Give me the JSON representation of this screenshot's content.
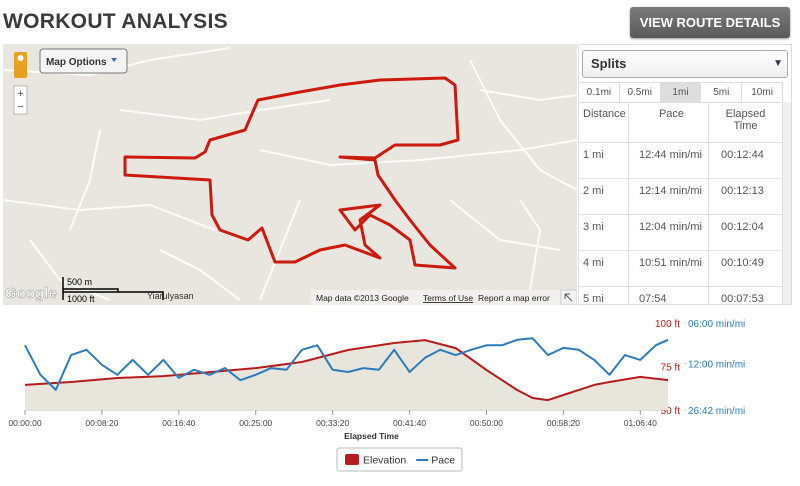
{
  "header": {
    "title": "WORKOUT ANALYSIS",
    "button": "VIEW ROUTE DETAILS"
  },
  "map": {
    "map_options": "Map Options",
    "zoom_in": "+",
    "zoom_out": "−",
    "scale_metric": "500 m",
    "scale_imperial": "1000 ft",
    "place_label": "Yiarulyasan",
    "logo": "Google",
    "attribution": "Map data ©2013 Google",
    "terms": "Terms of Use",
    "report": "Report a map error"
  },
  "splits": {
    "selector": "Splits",
    "intervals": [
      "0.1mi",
      "0.5mi",
      "1mi",
      "5mi",
      "10mi"
    ],
    "selected_index": 2,
    "columns": [
      "Distance",
      "Pace",
      "Elapsed Time"
    ],
    "rows": [
      [
        "1 mi",
        "12:44 min/mi",
        "00:12:44"
      ],
      [
        "2 mi",
        "12:14 min/mi",
        "00:12:13"
      ],
      [
        "3 mi",
        "12:04 min/mi",
        "00:12:04"
      ],
      [
        "4 mi",
        "10:51 min/mi",
        "00:10:49"
      ],
      [
        "5 mi",
        "07:54",
        "00:07:53"
      ]
    ]
  },
  "chart_data": {
    "type": "line",
    "x_label": "Elapsed Time",
    "xlim": [
      0,
      4180
    ],
    "xticks": [
      {
        "value": 0,
        "label": "00:00:00"
      },
      {
        "value": 500,
        "label": "00:08:20"
      },
      {
        "value": 1000,
        "label": "00:16:40"
      },
      {
        "value": 1500,
        "label": "00:25:00"
      },
      {
        "value": 2000,
        "label": "00:33:20"
      },
      {
        "value": 2500,
        "label": "00:41:40"
      },
      {
        "value": 3000,
        "label": "00:50:00"
      },
      {
        "value": 3500,
        "label": "00:58:20"
      },
      {
        "value": 4000,
        "label": "01:06:40"
      }
    ],
    "ylim": [
      50,
      100
    ],
    "yticks": [
      {
        "value": 50,
        "label": "50 ft"
      },
      {
        "value": 75,
        "label": "75 ft"
      },
      {
        "value": 100,
        "label": "100 ft"
      }
    ],
    "y2lim": [
      6,
      26.7
    ],
    "y2_log": true,
    "y2_reversed": true,
    "y2ticks": [
      {
        "value": 6,
        "label": "06:00 min/mi"
      },
      {
        "value": 12,
        "label": "12:00 min/mi"
      },
      {
        "value": 26.7,
        "label": "26:42 min/mi"
      }
    ],
    "legend": "bottom",
    "series": [
      {
        "name": "Elevation",
        "color": "#b71c1c",
        "style": "area",
        "x": [
          0,
          300,
          600,
          900,
          1200,
          1500,
          1800,
          2100,
          2400,
          2600,
          2800,
          3000,
          3200,
          3300,
          3400,
          3500,
          3700,
          3800,
          4000,
          4180
        ],
        "values": [
          64.4,
          66.1,
          68.4,
          69.5,
          71.8,
          74.1,
          77.6,
          84.5,
          88.5,
          90.2,
          85.6,
          73.0,
          61.5,
          56.9,
          55.7,
          58.6,
          64.4,
          66.1,
          69.0,
          67.2
        ]
      },
      {
        "name": "Pace",
        "color": "#2b7bbd",
        "style": "line",
        "axis": "y2",
        "x": [
          0,
          100,
          200,
          300,
          400,
          500,
          600,
          700,
          800,
          900,
          1000,
          1100,
          1200,
          1300,
          1400,
          1500,
          1600,
          1700,
          1800,
          1900,
          2000,
          2100,
          2200,
          2300,
          2400,
          2500,
          2600,
          2700,
          2800,
          2900,
          3000,
          3100,
          3200,
          3300,
          3400,
          3500,
          3600,
          3700,
          3800,
          3900,
          4000,
          4100,
          4180
        ],
        "values": [
          8.8,
          14.6,
          18.9,
          10.4,
          9.5,
          12.3,
          14.6,
          11.3,
          14.6,
          11.3,
          15.4,
          13.4,
          14.6,
          13.0,
          16.0,
          14.6,
          13.0,
          13.4,
          9.5,
          8.8,
          13.4,
          13.9,
          13.0,
          13.4,
          9.5,
          13.9,
          10.9,
          9.5,
          10.4,
          9.5,
          8.8,
          8.8,
          8.0,
          7.8,
          10.4,
          9.2,
          9.5,
          11.3,
          14.6,
          10.4,
          11.3,
          8.8,
          8.0
        ]
      }
    ]
  }
}
